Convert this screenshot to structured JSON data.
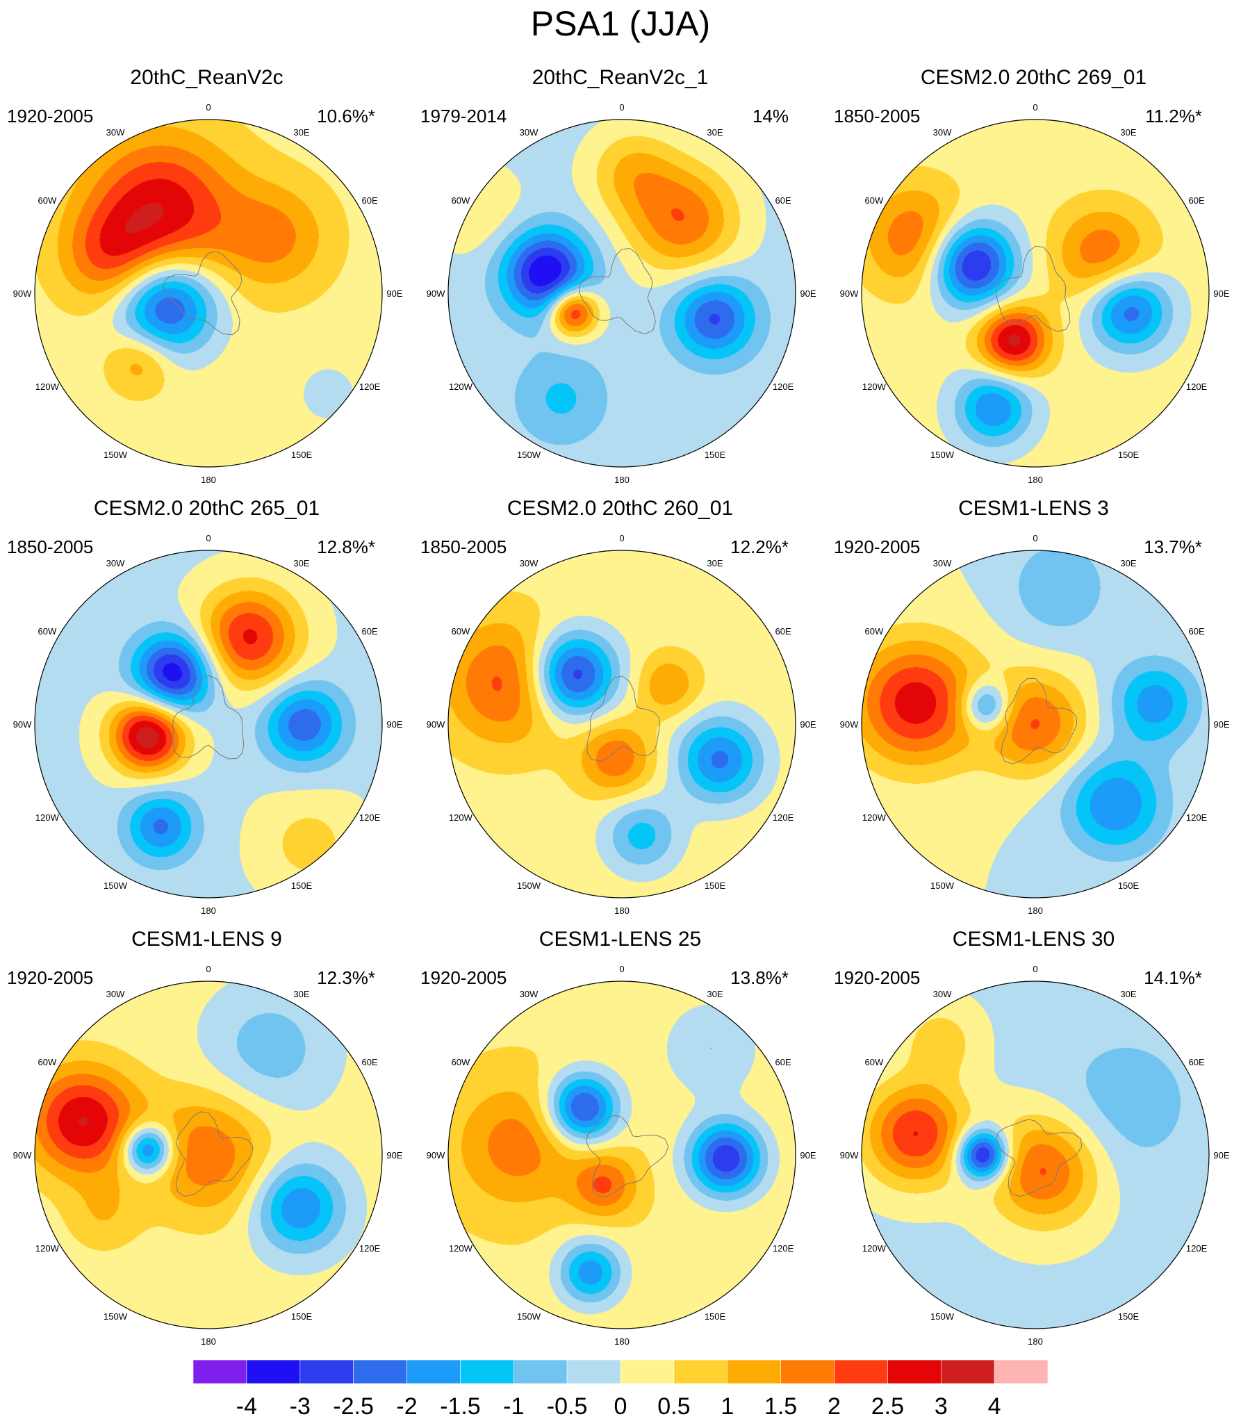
{
  "title": "PSA1 (JJA)",
  "lon_labels": [
    "0",
    "30E",
    "60E",
    "90E",
    "120E",
    "150E",
    "180",
    "150W",
    "120W",
    "90W",
    "60W",
    "30W"
  ],
  "panels": [
    {
      "title": "20thC_ReanV2c",
      "period": "1920-2005",
      "variance": "10.6%*",
      "base": 0.3,
      "blobs": [
        {
          "lon": -75,
          "r": 0.25,
          "s": 0.2,
          "amp": -3.2
        },
        {
          "lon": 50,
          "r": 0.9,
          "s": 0.12,
          "amp": -0.6
        },
        {
          "lon": -45,
          "r": 0.55,
          "s": 0.13,
          "amp": 1.2
        },
        {
          "lon": -150,
          "r": 0.55,
          "s": 0.3,
          "amp": 2.6
        },
        {
          "lon": -110,
          "r": 0.6,
          "s": 0.2,
          "amp": 1.4
        },
        {
          "lon": 130,
          "r": 0.5,
          "s": 0.22,
          "amp": 1.3
        }
      ]
    },
    {
      "title": "20thC_ReanV2c_1",
      "period": "1979-2014",
      "variance": "14%",
      "base": -0.2,
      "blobs": [
        {
          "lon": -105,
          "r": 0.45,
          "s": 0.17,
          "amp": -3.4
        },
        {
          "lon": -70,
          "r": 0.3,
          "s": 0.1,
          "amp": 3.2
        },
        {
          "lon": 75,
          "r": 0.55,
          "s": 0.16,
          "amp": -2.4
        },
        {
          "lon": -30,
          "r": 0.7,
          "s": 0.18,
          "amp": -0.9
        },
        {
          "lon": 140,
          "r": 0.55,
          "s": 0.22,
          "amp": 2.1
        },
        {
          "lon": 175,
          "r": 0.7,
          "s": 0.18,
          "amp": 1.2
        },
        {
          "lon": -120,
          "r": 0.95,
          "s": 0.2,
          "amp": 0.6
        }
      ]
    },
    {
      "title": "CESM2.0 20thC 269_01",
      "period": "1850-2005",
      "variance": "11.2%*",
      "base": 0.2,
      "blobs": [
        {
          "lon": -115,
          "r": 0.4,
          "s": 0.17,
          "amp": -3.6
        },
        {
          "lon": -25,
          "r": 0.3,
          "s": 0.14,
          "amp": 3.0
        },
        {
          "lon": 80,
          "r": 0.55,
          "s": 0.16,
          "amp": -2.6
        },
        {
          "lon": -20,
          "r": 0.7,
          "s": 0.15,
          "amp": -2.2
        },
        {
          "lon": -115,
          "r": 0.75,
          "s": 0.22,
          "amp": 1.8
        },
        {
          "lon": 120,
          "r": 0.45,
          "s": 0.2,
          "amp": 1.7
        }
      ]
    },
    {
      "title": "CESM2.0 20thC 265_01",
      "period": "1850-2005",
      "variance": "12.8%*",
      "base": -0.1,
      "blobs": [
        {
          "lon": -80,
          "r": 0.35,
          "s": 0.15,
          "amp": 3.6
        },
        {
          "lon": -145,
          "r": 0.35,
          "s": 0.16,
          "amp": -3.4
        },
        {
          "lon": 90,
          "r": 0.55,
          "s": 0.16,
          "amp": -2.3
        },
        {
          "lon": -25,
          "r": 0.65,
          "s": 0.14,
          "amp": -2.0
        },
        {
          "lon": 155,
          "r": 0.55,
          "s": 0.2,
          "amp": 2.7
        },
        {
          "lon": 40,
          "r": 0.9,
          "s": 0.2,
          "amp": 0.8
        }
      ]
    },
    {
      "title": "CESM2.0 20thC 260_01",
      "period": "1850-2005",
      "variance": "12.2%*",
      "base": 0.3,
      "blobs": [
        {
          "lon": -135,
          "r": 0.4,
          "s": 0.17,
          "amp": -3.4
        },
        {
          "lon": 70,
          "r": 0.6,
          "s": 0.17,
          "amp": -2.4
        },
        {
          "lon": 10,
          "r": 0.65,
          "s": 0.15,
          "amp": -1.5
        },
        {
          "lon": -110,
          "r": 0.7,
          "s": 0.25,
          "amp": 1.9
        },
        {
          "lon": -10,
          "r": 0.2,
          "s": 0.15,
          "amp": 1.6
        },
        {
          "lon": 130,
          "r": 0.35,
          "s": 0.12,
          "amp": 1.2
        }
      ]
    },
    {
      "title": "CESM1-LENS 3",
      "period": "1920-2005",
      "variance": "13.7%*",
      "base": 0.0,
      "blobs": [
        {
          "lon": -100,
          "r": 0.7,
          "s": 0.25,
          "amp": 2.8
        },
        {
          "lon": -110,
          "r": 0.3,
          "s": 0.1,
          "amp": -2.2
        },
        {
          "lon": 45,
          "r": 0.65,
          "s": 0.2,
          "amp": -2.0
        },
        {
          "lon": 100,
          "r": 0.7,
          "s": 0.17,
          "amp": -1.8
        },
        {
          "lon": 0,
          "r": 0.0,
          "s": 0.2,
          "amp": 2.0
        },
        {
          "lon": 170,
          "r": 0.8,
          "s": 0.2,
          "amp": -1.0
        }
      ]
    },
    {
      "title": "CESM1-LENS 9",
      "period": "1920-2005",
      "variance": "12.3%*",
      "base": 0.2,
      "blobs": [
        {
          "lon": -105,
          "r": 0.75,
          "s": 0.22,
          "amp": 2.8
        },
        {
          "lon": -95,
          "r": 0.35,
          "s": 0.1,
          "amp": -3.0
        },
        {
          "lon": 60,
          "r": 0.6,
          "s": 0.18,
          "amp": -2.2
        },
        {
          "lon": 0,
          "r": 0.0,
          "s": 0.25,
          "amp": 1.7
        },
        {
          "lon": 150,
          "r": 0.7,
          "s": 0.25,
          "amp": -1.0
        },
        {
          "lon": -60,
          "r": 0.7,
          "s": 0.15,
          "amp": 0.7
        }
      ]
    },
    {
      "title": "CESM1-LENS 25",
      "period": "1920-2005",
      "variance": "13.8%*",
      "base": 0.4,
      "blobs": [
        {
          "lon": -140,
          "r": 0.35,
          "s": 0.14,
          "amp": -3.2
        },
        {
          "lon": 88,
          "r": 0.6,
          "s": 0.15,
          "amp": -3.3
        },
        {
          "lon": -15,
          "r": 0.7,
          "s": 0.13,
          "amp": -2.2
        },
        {
          "lon": -95,
          "r": 0.6,
          "s": 0.25,
          "amp": 1.4
        },
        {
          "lon": -30,
          "r": 0.2,
          "s": 0.13,
          "amp": 1.6
        },
        {
          "lon": 140,
          "r": 0.8,
          "s": 0.2,
          "amp": -0.9
        }
      ]
    },
    {
      "title": "CESM1-LENS 30",
      "period": "1920-2005",
      "variance": "14.1%*",
      "base": -0.1,
      "blobs": [
        {
          "lon": -100,
          "r": 0.7,
          "s": 0.2,
          "amp": 2.6
        },
        {
          "lon": -90,
          "r": 0.3,
          "s": 0.1,
          "amp": -3.6
        },
        {
          "lon": 30,
          "r": 0.1,
          "s": 0.22,
          "amp": 2.2
        },
        {
          "lon": -140,
          "r": 0.85,
          "s": 0.15,
          "amp": 0.9
        },
        {
          "lon": 120,
          "r": 0.6,
          "s": 0.3,
          "amp": -0.7
        }
      ]
    }
  ],
  "colorbar": {
    "levels": [
      "-4",
      "-3",
      "-2.5",
      "-2",
      "-1.5",
      "-1",
      "-0.5",
      "0",
      "0.5",
      "1",
      "1.5",
      "2",
      "2.5",
      "3",
      "4"
    ],
    "colors": [
      "#8020ee",
      "#1e10f2",
      "#2c3cee",
      "#2e6cee",
      "#1c9cf8",
      "#04c4f8",
      "#70c4ef",
      "#b4dcf0",
      "#fff390",
      "#ffd231",
      "#ffab05",
      "#ff7b05",
      "#ff3c10",
      "#e40606",
      "#ce1e1e",
      "#ffb4b4"
    ]
  }
}
